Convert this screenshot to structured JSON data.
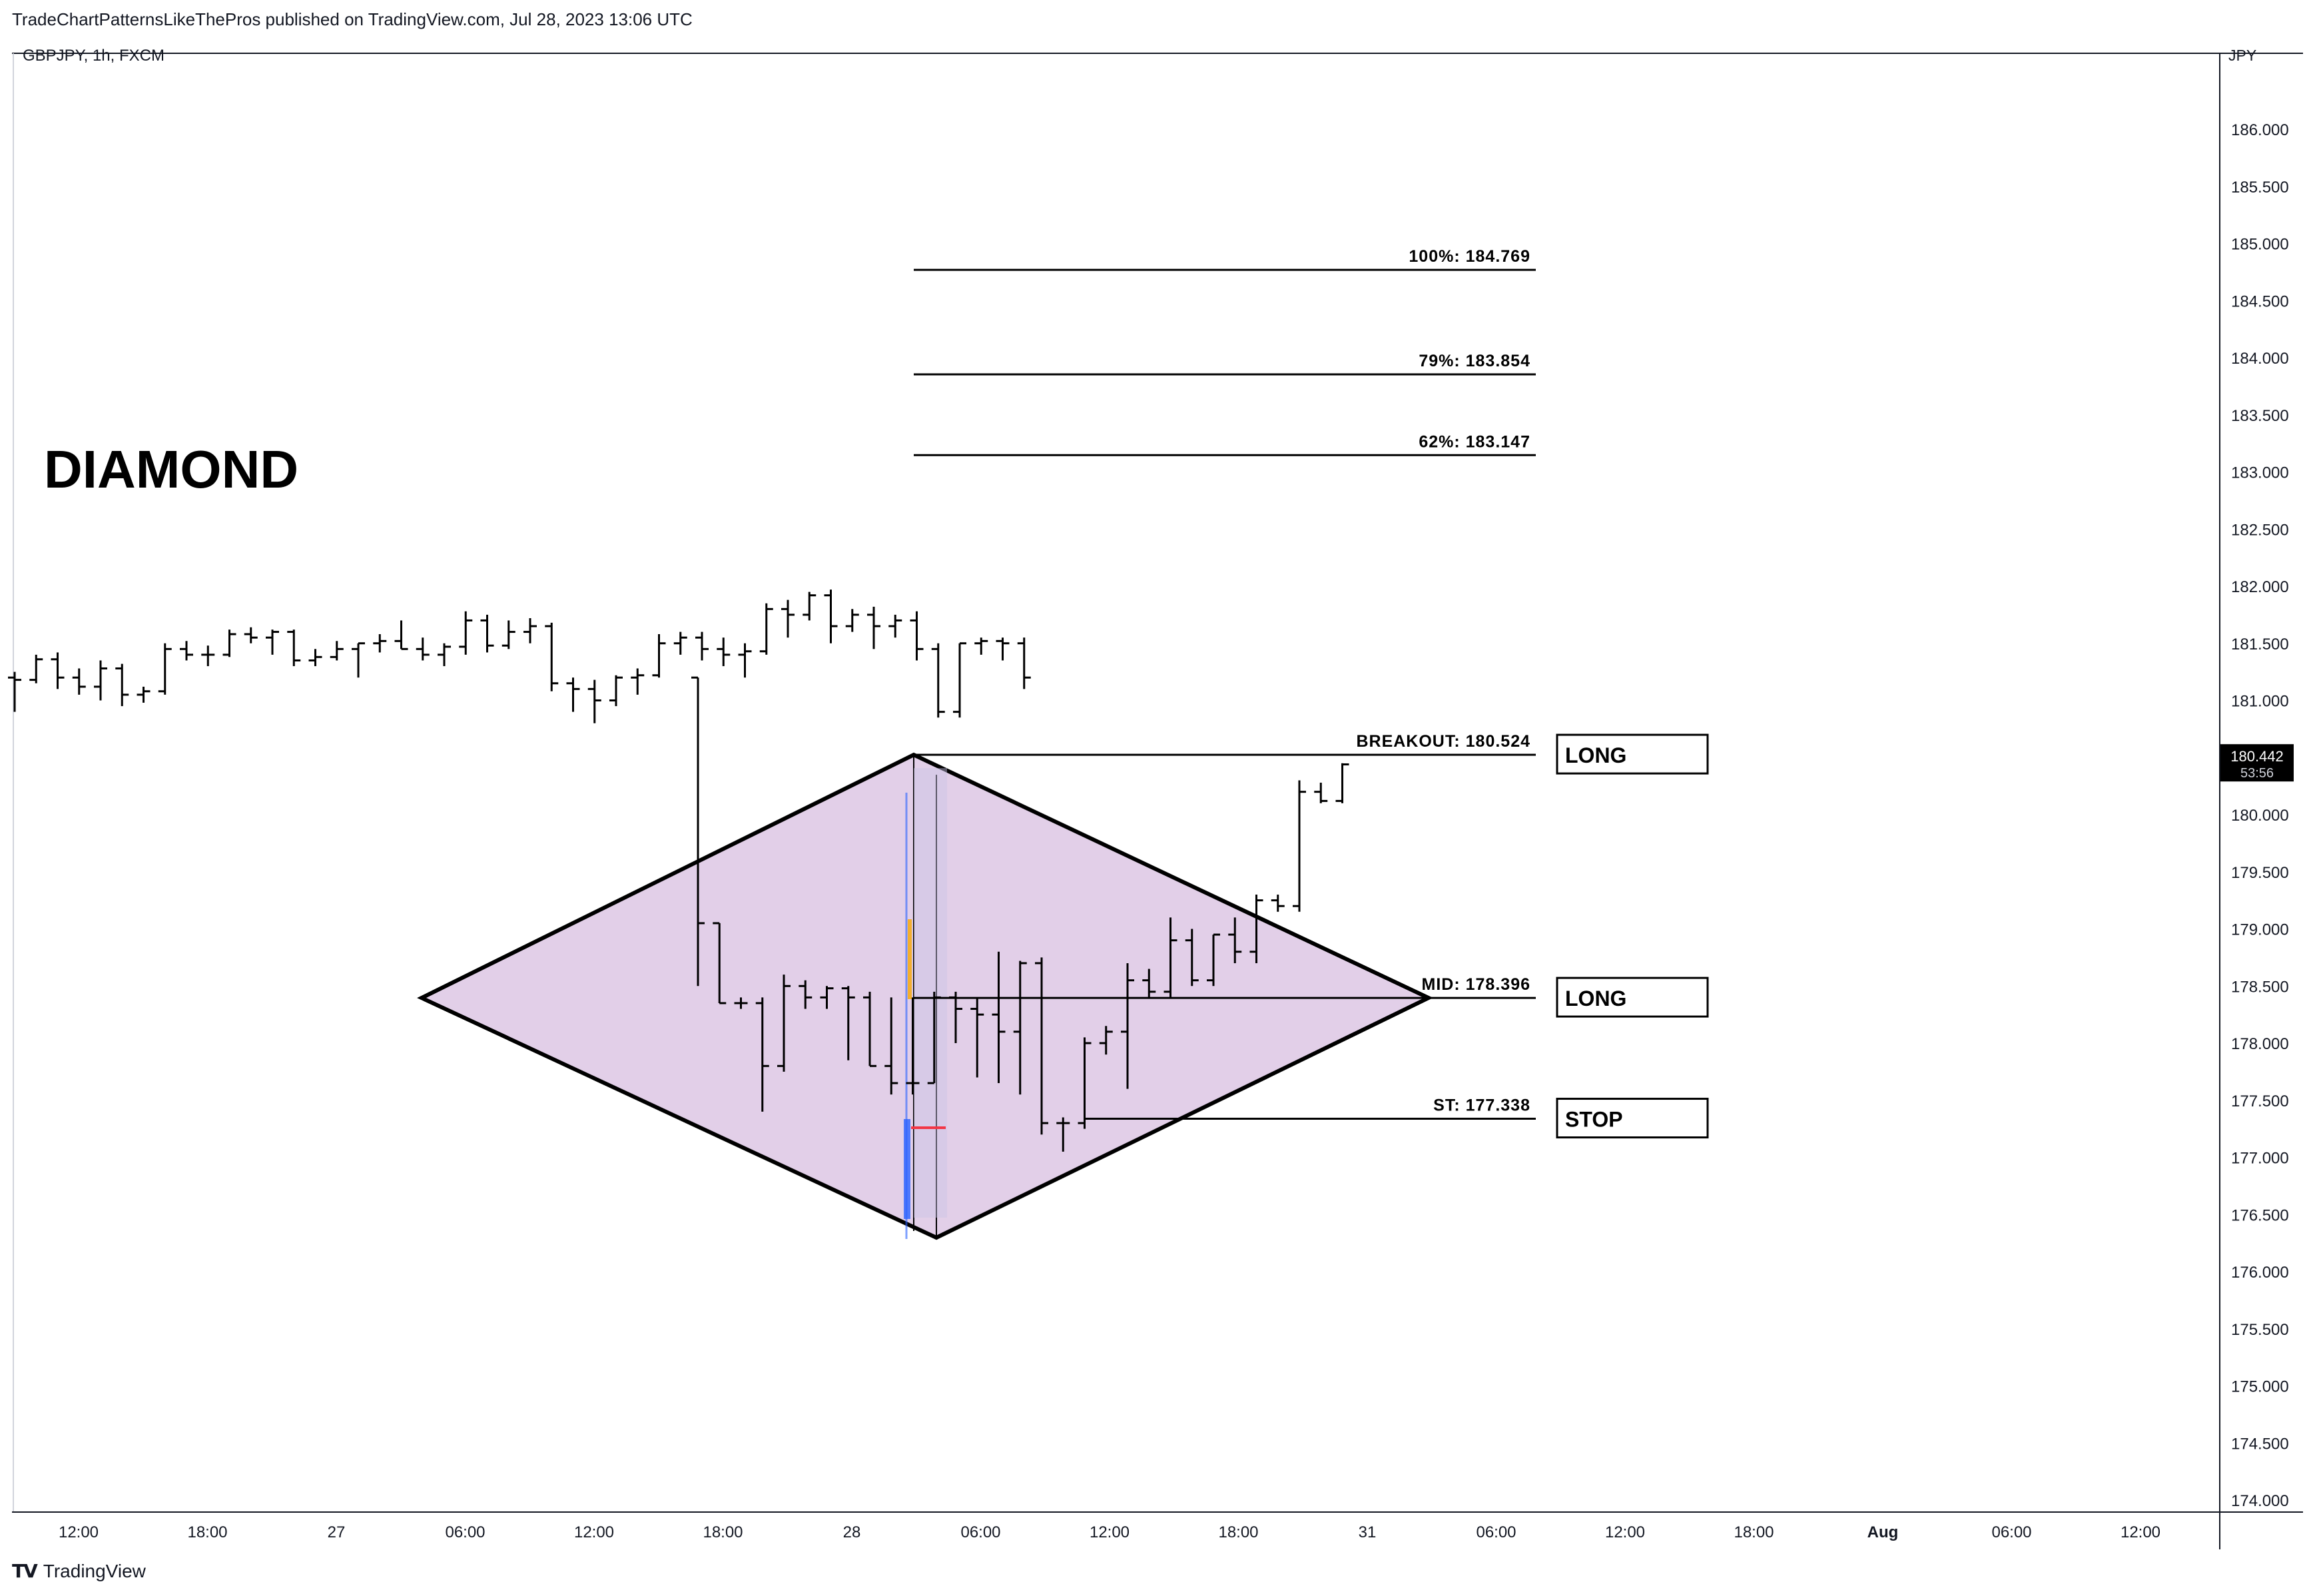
{
  "header": {
    "published": "TradeChartPatternsLikeThePros published on TradingView.com, Jul 28, 2023 13:06 UTC",
    "symbol": "GBPJPY, 1h, FXCM",
    "currency": "JPY"
  },
  "footer": {
    "brand": "TradingView",
    "logo_icon": "tradingview-logo-icon"
  },
  "colors": {
    "diamond_fill": "#e2cfe8",
    "diamond_stroke": "#000000",
    "bars": "#000000",
    "price_tag_bg": "#000000",
    "volume_profile_blue": "#2962ff",
    "volume_profile_orange": "#f7a600",
    "volume_profile_red": "#f23645"
  },
  "chart_data": {
    "type": "ohlc",
    "title": "DIAMOND",
    "symbol": "GBPJPY",
    "timeframe": "1h",
    "exchange": "FXCM",
    "ylim": [
      173.8,
      186.6
    ],
    "y_ticks": [
      "174.000",
      "174.500",
      "175.000",
      "175.500",
      "176.000",
      "176.500",
      "177.000",
      "177.500",
      "178.000",
      "178.500",
      "179.000",
      "179.500",
      "180.000",
      "180.500",
      "181.000",
      "181.500",
      "182.000",
      "182.500",
      "183.000",
      "183.500",
      "184.000",
      "184.500",
      "185.000",
      "185.500",
      "186.000"
    ],
    "x_ticks": [
      "12:00",
      "18:00",
      "27",
      "06:00",
      "12:00",
      "18:00",
      "28",
      "06:00",
      "12:00",
      "18:00",
      "31",
      "06:00",
      "12:00",
      "18:00",
      "Aug",
      "06:00",
      "12:00"
    ],
    "x_tick_bold": [
      false,
      false,
      false,
      false,
      false,
      false,
      false,
      false,
      false,
      false,
      false,
      false,
      false,
      false,
      true,
      false,
      false
    ],
    "current_price": {
      "price": "180.442",
      "countdown": "53:56"
    },
    "ohlc": [
      [
        181.2,
        181.25,
        180.9,
        181.18
      ],
      [
        181.18,
        181.4,
        181.15,
        181.36
      ],
      [
        181.36,
        181.42,
        181.1,
        181.2
      ],
      [
        181.2,
        181.28,
        181.05,
        181.12
      ],
      [
        181.12,
        181.35,
        181.0,
        181.28
      ],
      [
        181.28,
        181.32,
        180.95,
        181.05
      ],
      [
        181.05,
        181.12,
        180.98,
        181.08
      ],
      [
        181.08,
        181.5,
        181.05,
        181.45
      ],
      [
        181.45,
        181.52,
        181.35,
        181.4
      ],
      [
        181.4,
        181.48,
        181.3,
        181.4
      ],
      [
        181.4,
        181.62,
        181.38,
        181.58
      ],
      [
        181.58,
        181.64,
        181.5,
        181.55
      ],
      [
        181.55,
        181.62,
        181.4,
        181.6
      ],
      [
        181.6,
        181.62,
        181.3,
        181.35
      ],
      [
        181.35,
        181.45,
        181.3,
        181.38
      ],
      [
        181.38,
        181.52,
        181.35,
        181.45
      ],
      [
        181.45,
        181.5,
        181.2,
        181.5
      ],
      [
        181.5,
        181.58,
        181.42,
        181.52
      ],
      [
        181.52,
        181.7,
        181.45,
        181.45
      ],
      [
        181.45,
        181.55,
        181.35,
        181.4
      ],
      [
        181.4,
        181.5,
        181.3,
        181.47
      ],
      [
        181.47,
        181.78,
        181.4,
        181.7
      ],
      [
        181.7,
        181.75,
        181.42,
        181.48
      ],
      [
        181.48,
        181.7,
        181.45,
        181.6
      ],
      [
        181.6,
        181.72,
        181.5,
        181.65
      ],
      [
        181.65,
        181.68,
        181.08,
        181.15
      ],
      [
        181.15,
        181.2,
        180.9,
        181.1
      ],
      [
        181.1,
        181.18,
        180.8,
        181.0
      ],
      [
        181.0,
        181.22,
        180.95,
        181.2
      ],
      [
        181.2,
        181.28,
        181.05,
        181.22
      ],
      [
        181.22,
        181.58,
        181.2,
        181.5
      ],
      [
        181.5,
        181.6,
        181.4,
        181.55
      ],
      [
        181.55,
        181.6,
        181.35,
        181.45
      ],
      [
        181.45,
        181.55,
        181.3,
        181.4
      ],
      [
        181.4,
        181.5,
        181.2,
        181.43
      ],
      [
        181.43,
        181.85,
        181.4,
        181.8
      ],
      [
        181.8,
        181.88,
        181.55,
        181.75
      ],
      [
        181.75,
        181.95,
        181.7,
        181.92
      ],
      [
        181.92,
        181.97,
        181.5,
        181.65
      ],
      [
        181.65,
        181.8,
        181.6,
        181.75
      ],
      [
        181.75,
        181.82,
        181.45,
        181.65
      ],
      [
        181.65,
        181.75,
        181.55,
        181.7
      ],
      [
        181.7,
        181.78,
        181.35,
        181.45
      ],
      [
        181.45,
        181.5,
        180.85,
        180.9
      ],
      [
        180.9,
        181.5,
        180.85,
        181.5
      ],
      [
        181.5,
        181.55,
        181.4,
        181.52
      ],
      [
        181.52,
        181.55,
        181.35,
        181.5
      ],
      [
        181.5,
        181.55,
        181.1,
        181.2
      ],
      [
        181.2,
        181.2,
        178.5,
        179.05
      ],
      [
        179.05,
        179.05,
        178.35,
        178.35
      ],
      [
        178.35,
        178.4,
        178.3,
        178.35
      ],
      [
        178.35,
        178.4,
        177.4,
        177.8
      ],
      [
        177.8,
        178.6,
        177.75,
        178.5
      ],
      [
        178.5,
        178.55,
        178.3,
        178.4
      ],
      [
        178.4,
        178.5,
        178.3,
        178.48
      ],
      [
        178.48,
        178.5,
        177.85,
        178.4
      ],
      [
        178.4,
        178.45,
        177.8,
        177.8
      ],
      [
        177.8,
        178.4,
        177.55,
        177.65
      ],
      [
        177.65,
        178.4,
        177.55,
        177.65
      ],
      [
        177.65,
        178.45,
        177.65,
        178.4
      ],
      [
        178.4,
        178.45,
        178.0,
        178.3
      ],
      [
        178.3,
        178.4,
        177.7,
        178.25
      ],
      [
        178.25,
        178.8,
        177.65,
        178.1
      ],
      [
        178.1,
        178.72,
        177.55,
        178.7
      ],
      [
        178.7,
        178.75,
        177.2,
        177.3
      ],
      [
        177.3,
        177.35,
        177.05,
        177.3
      ],
      [
        177.3,
        178.05,
        177.25,
        178.0
      ],
      [
        178.0,
        178.15,
        177.9,
        178.1
      ],
      [
        178.1,
        178.7,
        177.6,
        178.55
      ],
      [
        178.55,
        178.65,
        178.4,
        178.45
      ],
      [
        178.45,
        179.1,
        178.4,
        178.9
      ],
      [
        178.9,
        179.0,
        178.5,
        178.55
      ],
      [
        178.55,
        178.95,
        178.5,
        178.95
      ],
      [
        178.95,
        179.1,
        178.7,
        178.8
      ],
      [
        178.8,
        179.3,
        178.7,
        179.25
      ],
      [
        179.25,
        179.3,
        179.15,
        179.2
      ],
      [
        179.2,
        180.3,
        179.15,
        180.2
      ],
      [
        180.2,
        180.28,
        180.1,
        180.12
      ],
      [
        180.12,
        180.45,
        180.1,
        180.44
      ]
    ],
    "shapes": {
      "diamond": {
        "left": [
          176.3,
          178.396
        ],
        "top": [
          28.0,
          180.524
        ],
        "right": [
          31.4,
          178.396
        ],
        "bottom": [
          28.2,
          176.3
        ]
      },
      "levels": [
        {
          "label": "100%: 184.769",
          "price": 184.769
        },
        {
          "label": "79%: 183.854",
          "price": 183.854
        },
        {
          "label": "62%: 183.147",
          "price": 183.147
        },
        {
          "label": "BREAKOUT: 180.524",
          "price": 180.524
        },
        {
          "label": "MID: 178.396",
          "price": 178.396
        },
        {
          "label": "ST: 177.338",
          "price": 177.338
        }
      ],
      "tags": [
        {
          "text": "LONG",
          "price": 180.524
        },
        {
          "text": "LONG",
          "price": 178.396
        },
        {
          "text": "STOP",
          "price": 177.338
        }
      ]
    }
  }
}
